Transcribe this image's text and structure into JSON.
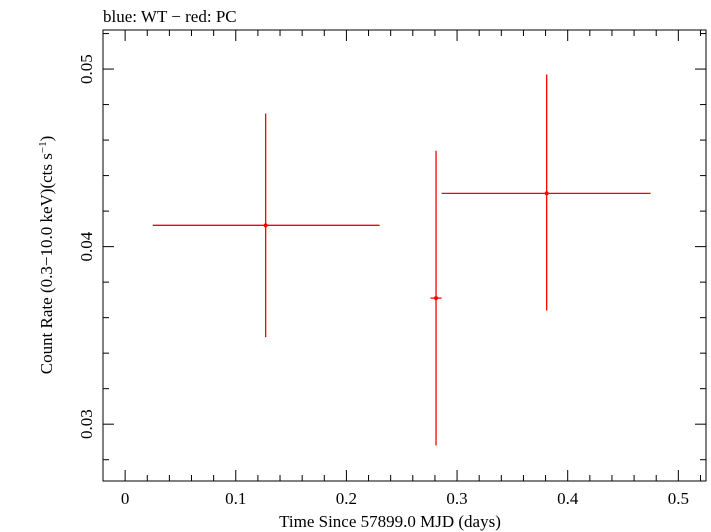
{
  "chart_data": {
    "type": "scatter",
    "title": "blue: WT − red: PC",
    "xlabel": "Time Since 57899.0 MJD (days)",
    "ylabel_main": "Count Rate (0.3−10.0 keV)(cts s",
    "ylabel_sup": "−1",
    "ylabel_close": ")",
    "xlim": [
      -0.02,
      0.525
    ],
    "ylim": [
      0.0268,
      0.0522
    ],
    "x_ticks": [
      {
        "value": 0,
        "label": "0"
      },
      {
        "value": 0.1,
        "label": "0.1"
      },
      {
        "value": 0.2,
        "label": "0.2"
      },
      {
        "value": 0.3,
        "label": "0.3"
      },
      {
        "value": 0.4,
        "label": "0.4"
      },
      {
        "value": 0.5,
        "label": "0.5"
      }
    ],
    "y_ticks": [
      {
        "value": 0.03,
        "label": "0.03"
      },
      {
        "value": 0.04,
        "label": "0.04"
      },
      {
        "value": 0.05,
        "label": "0.05"
      }
    ],
    "series": [
      {
        "name": "PC",
        "color": "#ff0000",
        "points": [
          {
            "x": 0.127,
            "y": 0.0412,
            "xlo": 0.025,
            "xhi": 0.23,
            "ylo": 0.0349,
            "yhi": 0.0475
          },
          {
            "x": 0.281,
            "y": 0.0371,
            "xlo": 0.276,
            "xhi": 0.286,
            "ylo": 0.0288,
            "yhi": 0.0454
          },
          {
            "x": 0.381,
            "y": 0.043,
            "xlo": 0.286,
            "xhi": 0.475,
            "ylo": 0.0364,
            "yhi": 0.0497
          }
        ]
      }
    ]
  }
}
